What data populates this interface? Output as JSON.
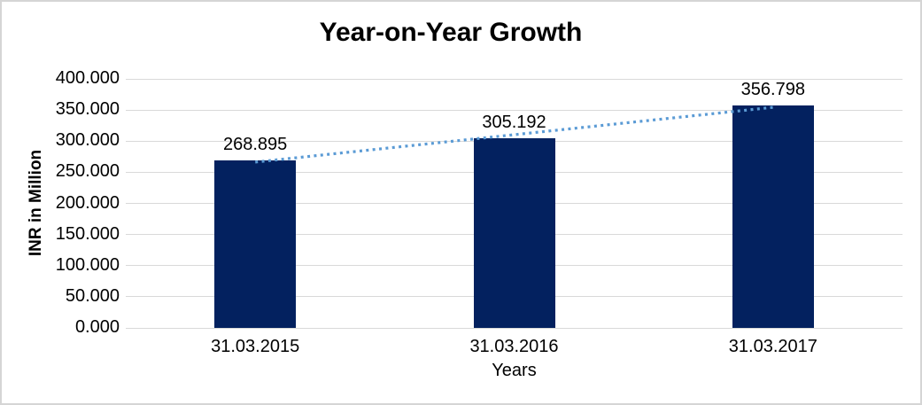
{
  "window": {
    "background": "#ffffff",
    "border_color": "#d5d5d5"
  },
  "chart_data": {
    "type": "bar",
    "title": "Year-on-Year Growth",
    "xlabel": "Years",
    "ylabel": "INR in Million",
    "categories": [
      "31.03.2015",
      "31.03.2016",
      "31.03.2017"
    ],
    "values": [
      268.895,
      305.192,
      356.798
    ],
    "data_labels": [
      "268.895",
      "305.192",
      "356.798"
    ],
    "ylim": [
      0,
      400
    ],
    "ytick_step": 50,
    "ytick_decimals": 3,
    "ytick_labels": [
      "0.000",
      "50.000",
      "100.000",
      "150.000",
      "200.000",
      "250.000",
      "300.000",
      "350.000",
      "400.000"
    ],
    "grid": true,
    "legend": "none",
    "bar_color": "#03215f",
    "gridline_color": "#d9d9d9",
    "text_color": "#000000",
    "trendline": {
      "type": "linear",
      "style": "dotted",
      "color": "#5b9bd5"
    }
  }
}
